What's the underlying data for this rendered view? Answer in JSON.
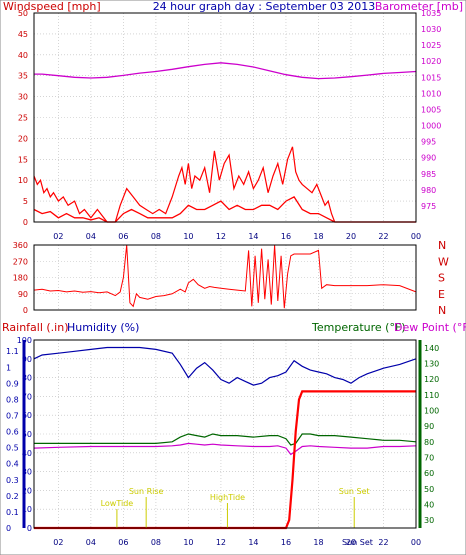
{
  "colors": {
    "wind": "#ff0000",
    "gust": "#ff0000",
    "baro": "#cc00cc",
    "rain": "#ff0000",
    "humidity": "#0000aa",
    "temperature": "#006600",
    "dewpoint": "#cc00cc",
    "annotation": "#cccc00",
    "grid": "#bbbbbb",
    "frame": "#000000"
  },
  "x_tick_labels": [
    "02",
    "04",
    "06",
    "08",
    "10",
    "12",
    "14",
    "16",
    "18",
    "20",
    "22",
    "00"
  ],
  "chart_data": [
    {
      "type": "line",
      "title": "24 hour graph day : September 03 2013",
      "ylabel_left": "Windspeed [mph]",
      "ylabel_right": "Barometer [mb]",
      "ylim_left": [
        0,
        50
      ],
      "ylim_right": [
        970,
        1035
      ],
      "left_ticks": [
        "0",
        "5",
        "10",
        "15",
        "20",
        "25",
        "30",
        "35",
        "40",
        "45",
        "50"
      ],
      "right_ticks": [
        "975",
        "980",
        "985",
        "990",
        "995",
        "1000",
        "1005",
        "1010",
        "1015",
        "1020",
        "1025",
        "1030",
        "1035"
      ],
      "x_range": [
        0.5,
        24
      ],
      "grid": true,
      "series": [
        {
          "key": "baro",
          "axis": "right",
          "x": [
            0.5,
            1,
            2,
            3,
            4,
            5,
            6,
            7,
            8,
            9,
            10,
            11,
            12,
            13,
            14,
            15,
            16,
            17,
            18,
            19,
            20,
            21,
            22,
            23,
            24
          ],
          "values": [
            1016,
            1016,
            1015.5,
            1015,
            1014.8,
            1015,
            1015.6,
            1016.3,
            1016.8,
            1017.5,
            1018.3,
            1019,
            1019.5,
            1019,
            1018.2,
            1017,
            1015.8,
            1015,
            1014.6,
            1014.8,
            1015.2,
            1015.7,
            1016.2,
            1016.5,
            1016.8
          ]
        },
        {
          "key": "gust",
          "axis": "left",
          "x": [
            0.5,
            0.7,
            0.9,
            1.1,
            1.3,
            1.5,
            1.7,
            2,
            2.3,
            2.6,
            3,
            3.3,
            3.6,
            4,
            4.4,
            5,
            5.5,
            5.8,
            6.2,
            6.6,
            7,
            7.4,
            7.8,
            8.2,
            8.6,
            9,
            9.4,
            9.6,
            9.8,
            10,
            10.2,
            10.4,
            10.7,
            11,
            11.3,
            11.6,
            11.9,
            12.2,
            12.5,
            12.8,
            13.1,
            13.4,
            13.7,
            14,
            14.3,
            14.6,
            14.9,
            15.2,
            15.5,
            15.8,
            16.1,
            16.4,
            16.6,
            16.8,
            17,
            17.3,
            17.6,
            17.9,
            18.2,
            18.4,
            18.6,
            18.8,
            19,
            24
          ],
          "values": [
            11,
            9,
            10,
            7,
            8,
            6,
            7,
            5,
            6,
            4,
            5,
            2,
            3,
            1,
            3,
            0,
            0,
            4,
            8,
            6,
            4,
            3,
            2,
            3,
            2,
            6,
            11,
            13,
            9,
            14,
            8,
            11,
            10,
            13,
            7,
            17,
            10,
            14,
            16,
            8,
            11,
            9,
            12,
            8,
            10,
            13,
            7,
            11,
            14,
            9,
            15,
            18,
            12,
            10,
            9,
            8,
            7,
            9,
            6,
            4,
            5,
            2,
            0,
            0
          ]
        },
        {
          "key": "wind",
          "axis": "left",
          "x": [
            0.5,
            1,
            1.5,
            2,
            2.5,
            3,
            3.5,
            4,
            4.5,
            5,
            5.5,
            6,
            6.5,
            7,
            7.5,
            8,
            8.5,
            9,
            9.5,
            10,
            10.5,
            11,
            11.5,
            12,
            12.5,
            13,
            13.5,
            14,
            14.5,
            15,
            15.5,
            16,
            16.5,
            17,
            17.5,
            18,
            18.5,
            19,
            24
          ],
          "values": [
            3,
            2,
            2.5,
            1,
            2,
            1,
            1,
            0.5,
            1,
            0,
            0,
            2,
            3,
            2,
            1,
            1,
            1,
            1,
            2,
            4,
            3,
            3,
            4,
            5,
            3,
            4,
            3,
            3,
            4,
            4,
            3,
            5,
            6,
            3,
            2,
            2,
            1,
            0,
            0
          ]
        }
      ]
    },
    {
      "type": "line",
      "ylabel_right": [
        "N",
        "W",
        "S",
        "E",
        "N"
      ],
      "ylim": [
        0,
        360
      ],
      "left_ticks": [
        "0",
        "90",
        "180",
        "270",
        "360"
      ],
      "x_range": [
        0.5,
        24
      ],
      "grid": true,
      "series": [
        {
          "key": "direction",
          "x": [
            0.5,
            1,
            1.5,
            2,
            2.5,
            3,
            3.5,
            4,
            4.5,
            5,
            5.5,
            5.8,
            6,
            6.2,
            6.4,
            6.6,
            6.8,
            7,
            7.5,
            8,
            8.5,
            9,
            9.5,
            9.8,
            10,
            10.3,
            10.6,
            11,
            11.3,
            11.6,
            12,
            12.5,
            13,
            13.5,
            13.7,
            13.9,
            14.1,
            14.3,
            14.5,
            14.7,
            14.9,
            15.1,
            15.3,
            15.5,
            15.7,
            15.9,
            16.1,
            16.3,
            16.5,
            17,
            17.5,
            18,
            18.2,
            18.5,
            19,
            20,
            21,
            22,
            23,
            24
          ],
          "values": [
            110,
            115,
            105,
            108,
            100,
            105,
            98,
            102,
            95,
            100,
            80,
            100,
            180,
            360,
            40,
            20,
            90,
            70,
            60,
            75,
            80,
            90,
            115,
            100,
            150,
            170,
            140,
            120,
            130,
            125,
            120,
            115,
            110,
            105,
            330,
            20,
            300,
            40,
            340,
            60,
            280,
            30,
            360,
            50,
            300,
            10,
            200,
            300,
            310,
            310,
            310,
            330,
            120,
            140,
            135,
            135,
            135,
            140,
            135,
            100
          ]
        }
      ]
    },
    {
      "type": "line",
      "ylabel_left": "Rainfall (.in)",
      "ylabel_left2": "Humidity (%)",
      "ylabel_right": "Temperature (°F)",
      "ylabel_right2": "Dew Point (°F)",
      "rain_ticks": [
        "0",
        "0.1",
        "0.2",
        "0.3",
        "0.4",
        "0.5",
        "0.6",
        "0.7",
        "0.8",
        "0.9",
        "1",
        "1.1"
      ],
      "humidity_ticks": [
        "0",
        "10",
        "20",
        "30",
        "40",
        "50",
        "60",
        "70",
        "80",
        "90",
        "100"
      ],
      "temp_ticks": [
        "30",
        "40",
        "50",
        "60",
        "70",
        "80",
        "90",
        "100",
        "110",
        "120",
        "130",
        "140"
      ],
      "ylim_rain": [
        0,
        1.17
      ],
      "ylim_humidity": [
        0,
        100
      ],
      "ylim_temp": [
        25,
        145
      ],
      "annotations": [
        "LowTide",
        "Sun Rise",
        "HighTide",
        "Sun Set"
      ],
      "x_axis_note": "Sun Set",
      "x_range": [
        0.5,
        24
      ],
      "grid": true,
      "series": [
        {
          "key": "humidity",
          "x": [
            0.5,
            1,
            2,
            3,
            4,
            5,
            6,
            7,
            8,
            9,
            9.5,
            10,
            10.5,
            11,
            11.5,
            12,
            12.5,
            13,
            13.5,
            14,
            14.5,
            15,
            15.5,
            16,
            16.5,
            17,
            17.5,
            18,
            18.5,
            19,
            19.5,
            20,
            20.5,
            21,
            22,
            23,
            24
          ],
          "values": [
            90,
            92,
            93,
            94,
            95,
            96,
            96,
            96,
            95,
            93,
            87,
            80,
            85,
            88,
            84,
            79,
            77,
            80,
            78,
            76,
            77,
            80,
            81,
            83,
            89,
            86,
            84,
            83,
            82,
            80,
            79,
            77,
            80,
            82,
            85,
            87,
            90
          ]
        },
        {
          "key": "temperature",
          "x": [
            0.5,
            2,
            4,
            6,
            8,
            9,
            9.5,
            10,
            10.5,
            11,
            11.5,
            12,
            13,
            14,
            15,
            15.5,
            16,
            16.3,
            16.6,
            17,
            17.5,
            18,
            19,
            20,
            21,
            22,
            23,
            24
          ],
          "values": [
            79,
            79,
            79,
            79,
            79,
            80,
            83,
            85,
            84,
            83,
            85,
            84,
            84,
            83,
            84,
            84,
            82,
            78,
            79,
            85,
            85,
            84,
            84,
            83,
            82,
            81,
            81,
            80
          ]
        },
        {
          "key": "dewpoint",
          "x": [
            0.5,
            2,
            4,
            6,
            8,
            9,
            9.5,
            10,
            10.5,
            11,
            11.5,
            12,
            13,
            14,
            15,
            15.5,
            16,
            16.3,
            16.6,
            17,
            17.5,
            18,
            19,
            20,
            21,
            22,
            23,
            24
          ],
          "values": [
            76,
            76.5,
            77,
            77,
            77,
            77.5,
            78,
            79,
            78.5,
            78,
            78.5,
            78,
            77.5,
            77,
            77,
            77.5,
            76,
            72,
            74,
            77,
            77.5,
            77,
            76.5,
            76,
            76,
            77,
            77,
            77.5
          ]
        },
        {
          "key": "rain",
          "x": [
            0.5,
            16,
            16.2,
            16.4,
            16.6,
            16.8,
            17,
            24
          ],
          "values": [
            0,
            0,
            0.05,
            0.3,
            0.6,
            0.8,
            0.85,
            0.85
          ]
        }
      ]
    }
  ]
}
